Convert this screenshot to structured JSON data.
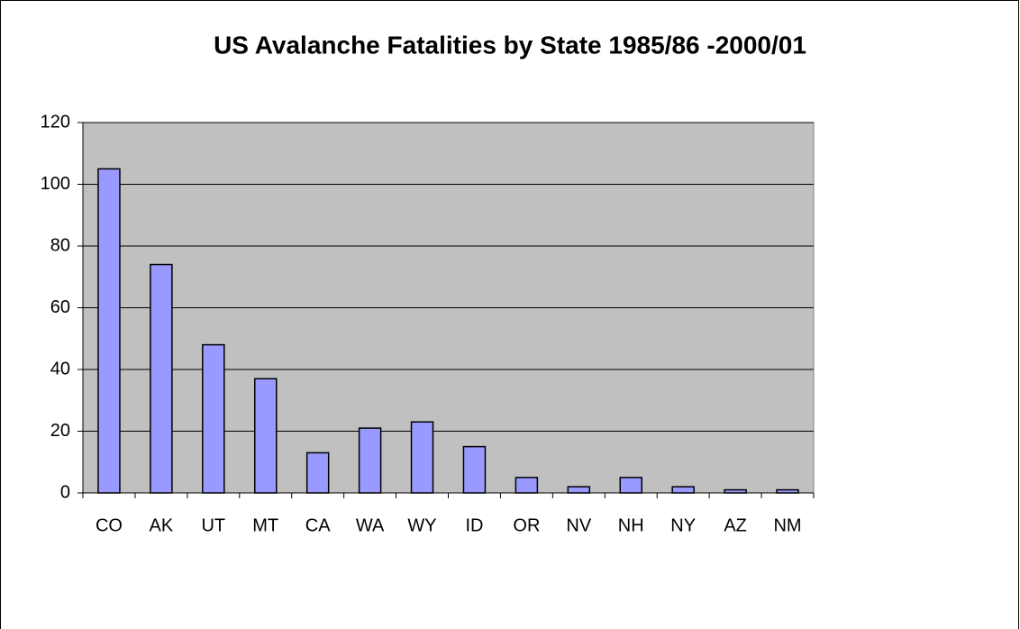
{
  "chart_data": {
    "type": "bar",
    "title": "US Avalanche Fatalities by State 1985/86 -2000/01",
    "categories": [
      "CO",
      "AK",
      "UT",
      "MT",
      "CA",
      "WA",
      "WY",
      "ID",
      "OR",
      "NV",
      "NH",
      "NY",
      "AZ",
      "NM"
    ],
    "values": [
      105,
      74,
      48,
      37,
      13,
      21,
      23,
      15,
      5,
      2,
      5,
      2,
      1,
      1
    ],
    "color": "#9999ff",
    "ylim": [
      0,
      120
    ],
    "yticks": [
      0,
      20,
      40,
      60,
      80,
      100,
      120
    ],
    "grid": true
  }
}
